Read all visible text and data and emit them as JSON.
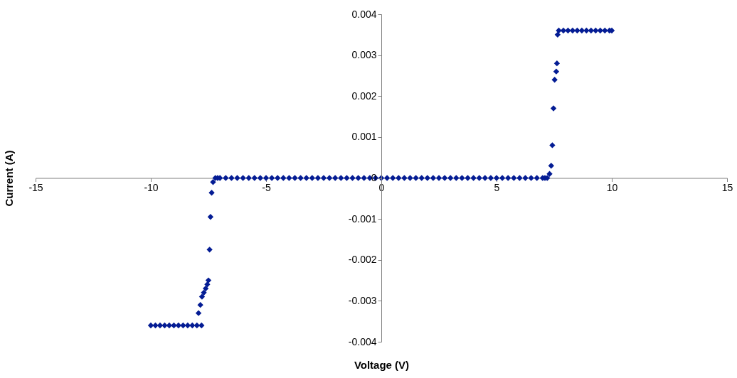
{
  "chart_data": {
    "type": "scatter",
    "xlabel": "Voltage (V)",
    "ylabel": "Current (A)",
    "marker": "diamond",
    "grid": false,
    "legend": false,
    "xlim": [
      -15,
      15
    ],
    "xticks": [
      -15,
      -10,
      -5,
      0,
      5,
      10,
      15
    ],
    "ylim": [
      -0.004,
      0.004
    ],
    "yticks": [
      -0.004,
      -0.003,
      -0.002,
      -0.001,
      {
        "value": 0,
        "label": "0"
      },
      0.001,
      0.002,
      0.003,
      0.004
    ],
    "series": [
      {
        "color": "#041c94",
        "x": [
          -10,
          -9.8,
          -9.6,
          -9.4,
          -9.2,
          -9,
          -8.8,
          -8.6,
          -8.4,
          -8.2,
          -8,
          -7.8,
          -7.93,
          -7.85,
          -7.78,
          -7.7,
          -7.62,
          -7.55,
          -7.5,
          -7.45,
          -7.41,
          -7.36,
          -7.3,
          -7.2,
          -7.1,
          -7,
          -6.75,
          -6.5,
          -6.25,
          -6,
          -5.75,
          -5.5,
          -5.25,
          -5,
          -4.75,
          -4.5,
          -4.25,
          -4,
          -3.75,
          -3.5,
          -3.25,
          -3,
          -2.75,
          -2.5,
          -2.25,
          -2,
          -1.75,
          -1.5,
          -1.25,
          -1,
          -0.75,
          -0.5,
          -0.25,
          0,
          0.25,
          0.5,
          0.75,
          1,
          1.25,
          1.5,
          1.75,
          2,
          2.25,
          2.5,
          2.75,
          3,
          3.25,
          3.5,
          3.75,
          4,
          4.25,
          4.5,
          4.75,
          5,
          5.25,
          5.5,
          5.75,
          6,
          6.25,
          6.5,
          6.75,
          7,
          7.1,
          7.2,
          7.3,
          7.37,
          7.42,
          7.47,
          7.52,
          7.59,
          7.62,
          7.65,
          7.7,
          7.9,
          8.1,
          8.3,
          8.5,
          8.7,
          8.9,
          9.1,
          9.3,
          9.5,
          9.7,
          9.9,
          10
        ],
        "values": [
          -0.0036,
          -0.0036,
          -0.0036,
          -0.0036,
          -0.0036,
          -0.0036,
          -0.0036,
          -0.0036,
          -0.0036,
          -0.0036,
          -0.0036,
          -0.0036,
          -0.0033,
          -0.0031,
          -0.0029,
          -0.0028,
          -0.0027,
          -0.0026,
          -0.0025,
          -0.00175,
          -0.00095,
          -0.00036,
          -0.0001,
          0,
          0,
          0,
          0,
          0,
          0,
          0,
          0,
          0,
          0,
          0,
          0,
          0,
          0,
          0,
          0,
          0,
          0,
          0,
          0,
          0,
          0,
          0,
          0,
          0,
          0,
          0,
          0,
          0,
          0,
          0,
          0,
          0,
          0,
          0,
          0,
          0,
          0,
          0,
          0,
          0,
          0,
          0,
          0,
          0,
          0,
          0,
          0,
          0,
          0,
          0,
          0,
          0,
          0,
          0,
          0,
          0,
          0,
          0,
          0,
          0,
          0.0001,
          0.0003,
          0.0008,
          0.0017,
          0.0024,
          0.0026,
          0.0028,
          0.0035,
          0.0036,
          0.0036,
          0.0036,
          0.0036,
          0.0036,
          0.0036,
          0.0036,
          0.0036,
          0.0036,
          0.0036,
          0.0036,
          0.0036,
          0.0036
        ]
      }
    ]
  }
}
